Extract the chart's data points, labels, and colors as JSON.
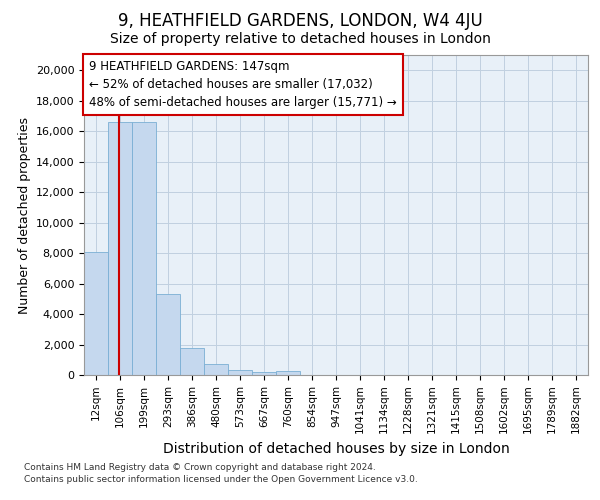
{
  "title": "9, HEATHFIELD GARDENS, LONDON, W4 4JU",
  "subtitle": "Size of property relative to detached houses in London",
  "xlabel": "Distribution of detached houses by size in London",
  "ylabel": "Number of detached properties",
  "bar_values": [
    8100,
    16600,
    16600,
    5300,
    1750,
    700,
    300,
    200,
    250,
    0,
    0,
    0,
    0,
    0,
    0,
    0,
    0,
    0,
    0,
    0,
    0
  ],
  "bar_labels": [
    "12sqm",
    "106sqm",
    "199sqm",
    "293sqm",
    "386sqm",
    "480sqm",
    "573sqm",
    "667sqm",
    "760sqm",
    "854sqm",
    "947sqm",
    "1041sqm",
    "1134sqm",
    "1228sqm",
    "1321sqm",
    "1415sqm",
    "1508sqm",
    "1602sqm",
    "1695sqm",
    "1789sqm",
    "1882sqm"
  ],
  "bar_color": "#c5d8ee",
  "bar_edge_color": "#7aafd4",
  "bar_alpha": 1.0,
  "annotation_text": "9 HEATHFIELD GARDENS: 147sqm\n← 52% of detached houses are smaller (17,032)\n48% of semi-detached houses are larger (15,771) →",
  "annotation_box_color": "#ffffff",
  "annotation_box_edge_color": "#cc0000",
  "red_line_color": "#cc0000",
  "grid_color": "#c0d0e0",
  "background_color": "#e8f0f8",
  "footer_line1": "Contains HM Land Registry data © Crown copyright and database right 2024.",
  "footer_line2": "Contains public sector information licensed under the Open Government Licence v3.0.",
  "ylim": [
    0,
    21000
  ],
  "yticks": [
    0,
    2000,
    4000,
    6000,
    8000,
    10000,
    12000,
    14000,
    16000,
    18000,
    20000
  ],
  "title_fontsize": 12,
  "subtitle_fontsize": 10,
  "xlabel_fontsize": 10,
  "ylabel_fontsize": 9,
  "tick_fontsize": 8,
  "annotation_fontsize": 8.5
}
